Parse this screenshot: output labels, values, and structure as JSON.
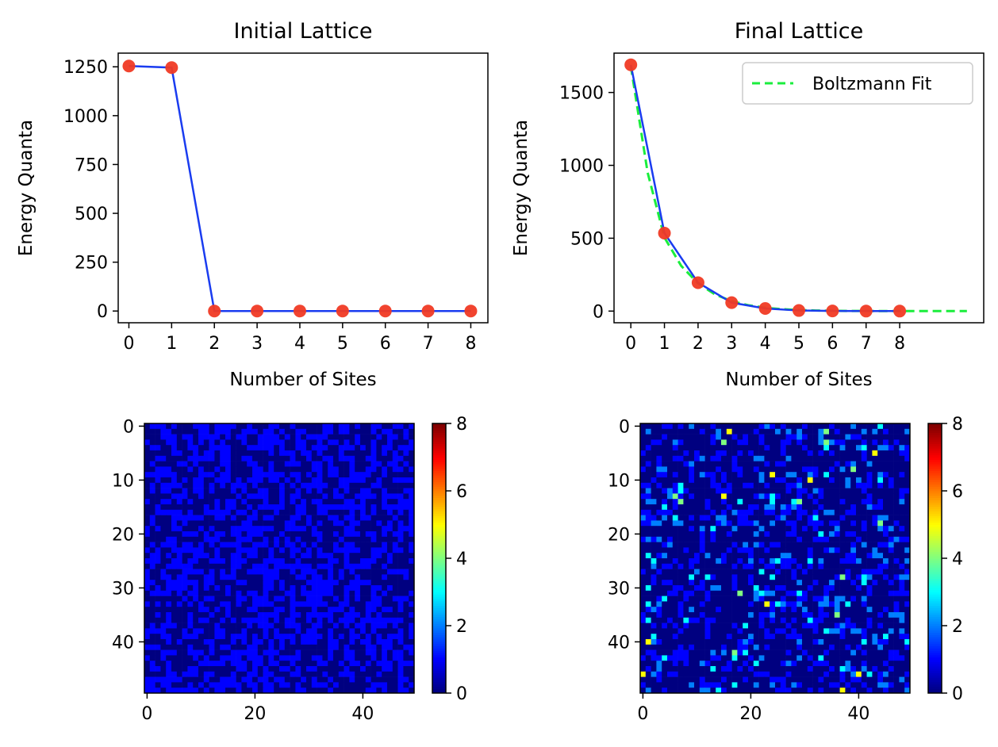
{
  "chart_data": [
    {
      "type": "line",
      "title": "Initial Lattice",
      "xlabel": "Number of Sites",
      "ylabel": "Energy Quanta",
      "x": [
        0,
        1,
        2,
        3,
        4,
        5,
        6,
        7,
        8
      ],
      "xticks": [
        "0",
        "1",
        "2",
        "3",
        "4",
        "5",
        "6",
        "7",
        "8"
      ],
      "yticks": [
        "0",
        "250",
        "500",
        "750",
        "1000",
        "1250"
      ],
      "xlim": [
        -0.25,
        8.4
      ],
      "ylim": [
        -60,
        1320
      ],
      "grid": false,
      "series": [
        {
          "kind": "line",
          "color": "#1a3cf0",
          "values": [
            1254,
            1246,
            0,
            0,
            0,
            0,
            0,
            0,
            0
          ]
        },
        {
          "kind": "scatter",
          "color": "#f03a24",
          "values": [
            1254,
            1246,
            0,
            0,
            0,
            0,
            0,
            0,
            0
          ]
        }
      ]
    },
    {
      "type": "line",
      "title": "Final Lattice",
      "xlabel": "Number of Sites",
      "ylabel": "Energy Quanta",
      "x": [
        0,
        1,
        2,
        3,
        4,
        5,
        6,
        7,
        8
      ],
      "xticks": [
        "0",
        "1",
        "2",
        "3",
        "4",
        "5",
        "6",
        "7",
        "8"
      ],
      "yticks": [
        "0",
        "500",
        "1000",
        "1500"
      ],
      "xlim": [
        -0.5,
        10.5
      ],
      "ylim": [
        -80,
        1770
      ],
      "grid": false,
      "legend_position": "upper-right",
      "series": [
        {
          "kind": "line",
          "color": "#1a3cf0",
          "values": [
            1690,
            535,
            195,
            58,
            18,
            4,
            1,
            0,
            0
          ]
        },
        {
          "kind": "scatter",
          "color": "#f03a24",
          "values": [
            1690,
            535,
            195,
            58,
            18,
            4,
            1,
            0,
            0
          ]
        },
        {
          "kind": "dashed",
          "name": "Boltzmann Fit",
          "color": "#1aee3c",
          "x": [
            0,
            0.5,
            1,
            1.5,
            2,
            2.5,
            3,
            3.5,
            4,
            4.5,
            5,
            5.5,
            6,
            6.5,
            7,
            7.5,
            8,
            8.5,
            9,
            9.5,
            10
          ],
          "values": [
            1680,
            950,
            505,
            310,
            190,
            115,
            68,
            40,
            23,
            13,
            7,
            4,
            2,
            1,
            1,
            0,
            0,
            0,
            0,
            0,
            0
          ]
        }
      ]
    },
    {
      "type": "heatmap",
      "title": "",
      "size": 50,
      "seed": 7,
      "xticks": [
        "0",
        "20",
        "40"
      ],
      "yticks": [
        "0",
        "10",
        "20",
        "30",
        "40"
      ],
      "colorbar": {
        "ticks": [
          "0",
          "2",
          "4",
          "6",
          "8"
        ],
        "range": [
          0,
          8
        ],
        "colormap": "jet"
      },
      "distribution": {
        "0": 0.5,
        "1": 0.5
      }
    },
    {
      "type": "heatmap",
      "title": "",
      "size": 50,
      "seed": 23,
      "xticks": [
        "0",
        "20",
        "40"
      ],
      "yticks": [
        "0",
        "10",
        "20",
        "30",
        "40"
      ],
      "colorbar": {
        "ticks": [
          "0",
          "2",
          "4",
          "6",
          "8"
        ],
        "range": [
          0,
          8
        ],
        "colormap": "jet"
      },
      "distribution": {
        "0": 0.675,
        "1": 0.214,
        "2": 0.078,
        "3": 0.023,
        "4": 0.007,
        "5": 0.002,
        "6": 0.0006,
        "8": 0.0004
      }
    }
  ]
}
